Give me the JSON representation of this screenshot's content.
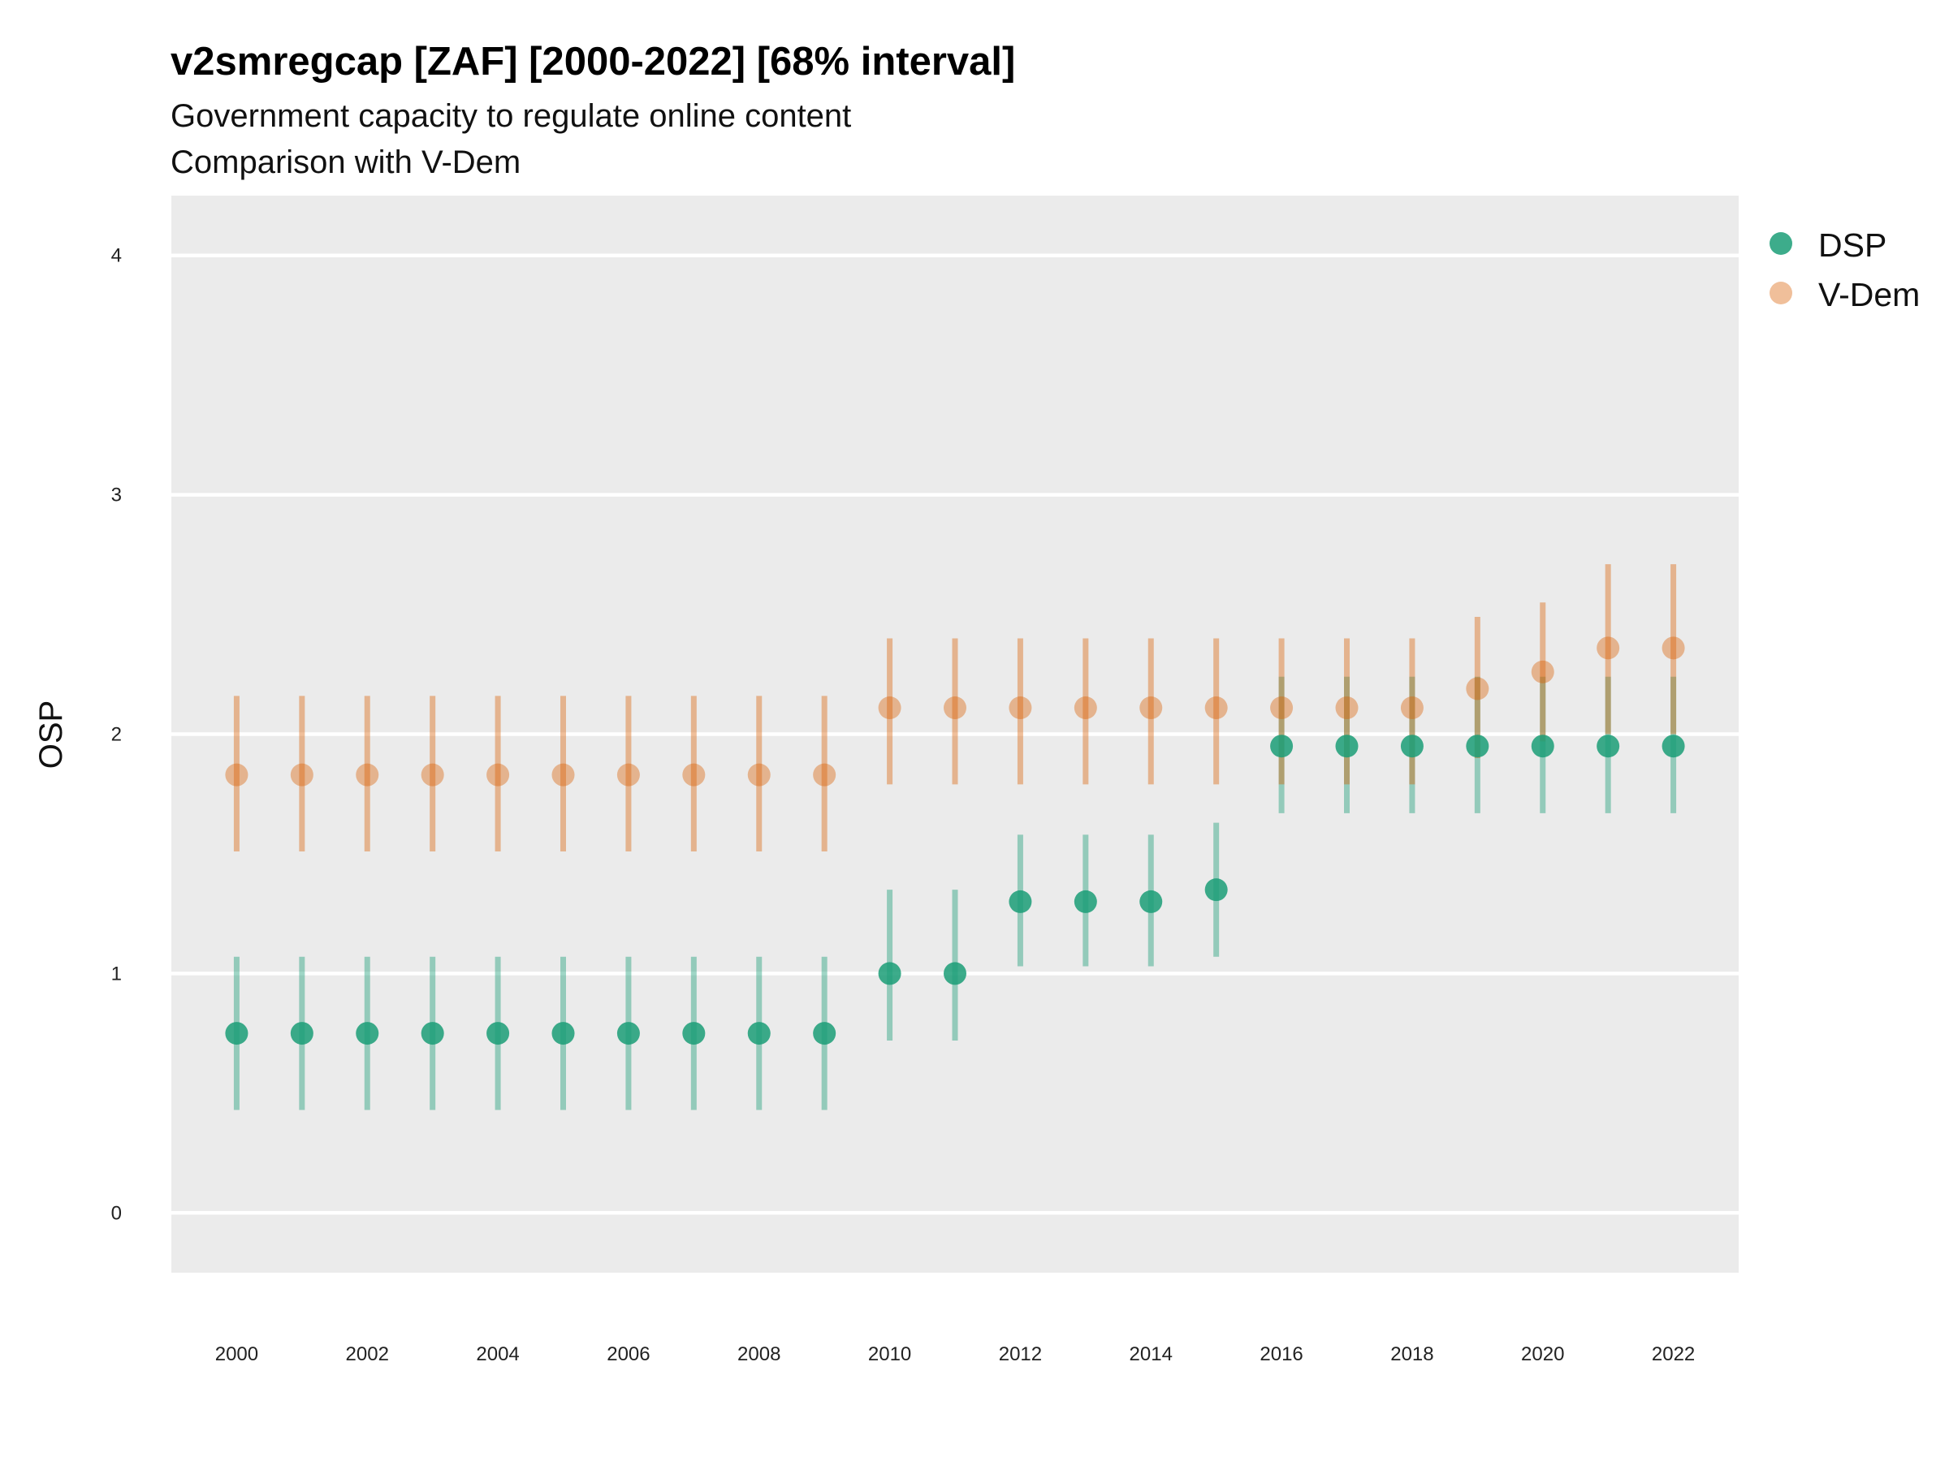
{
  "chart_data": {
    "type": "scatter",
    "title": "v2smregcap [ZAF] [2000-2022] [68% interval]",
    "subtitle_lines": [
      "Government capacity to regulate online content",
      "Comparison with V-Dem"
    ],
    "xlabel": "",
    "ylabel": "OSP",
    "xlim": [
      1999,
      2023
    ],
    "ylim": [
      -0.25,
      4.25
    ],
    "x_ticks": [
      2000,
      2002,
      2004,
      2006,
      2008,
      2010,
      2012,
      2014,
      2016,
      2018,
      2020,
      2022
    ],
    "y_ticks": [
      0,
      1,
      2,
      3,
      4
    ],
    "x": [
      2000,
      2001,
      2002,
      2003,
      2004,
      2005,
      2006,
      2007,
      2008,
      2009,
      2010,
      2011,
      2012,
      2013,
      2014,
      2015,
      2016,
      2017,
      2018,
      2019,
      2020,
      2021,
      2022
    ],
    "grid": true,
    "legend_position": "right",
    "series": [
      {
        "name": "DSP",
        "color": "#1b9e77",
        "values": [
          0.75,
          0.75,
          0.75,
          0.75,
          0.75,
          0.75,
          0.75,
          0.75,
          0.75,
          0.75,
          1.0,
          1.0,
          1.3,
          1.3,
          1.3,
          1.35,
          1.95,
          1.95,
          1.95,
          1.95,
          1.95,
          1.95,
          1.95
        ],
        "lower": [
          0.43,
          0.43,
          0.43,
          0.43,
          0.43,
          0.43,
          0.43,
          0.43,
          0.43,
          0.43,
          0.72,
          0.72,
          1.03,
          1.03,
          1.03,
          1.07,
          1.67,
          1.67,
          1.67,
          1.67,
          1.67,
          1.67,
          1.67
        ],
        "upper": [
          1.07,
          1.07,
          1.07,
          1.07,
          1.07,
          1.07,
          1.07,
          1.07,
          1.07,
          1.07,
          1.35,
          1.35,
          1.58,
          1.58,
          1.58,
          1.63,
          2.24,
          2.24,
          2.24,
          2.24,
          2.24,
          2.24,
          2.24
        ]
      },
      {
        "name": "V-Dem",
        "color": "#d95f02",
        "values": [
          1.83,
          1.83,
          1.83,
          1.83,
          1.83,
          1.83,
          1.83,
          1.83,
          1.83,
          1.83,
          2.11,
          2.11,
          2.11,
          2.11,
          2.11,
          2.11,
          2.11,
          2.11,
          2.11,
          2.19,
          2.26,
          2.36,
          2.36
        ],
        "lower": [
          1.51,
          1.51,
          1.51,
          1.51,
          1.51,
          1.51,
          1.51,
          1.51,
          1.51,
          1.51,
          1.79,
          1.79,
          1.79,
          1.79,
          1.79,
          1.79,
          1.79,
          1.79,
          1.79,
          1.9,
          1.97,
          2.0,
          2.0
        ],
        "upper": [
          2.16,
          2.16,
          2.16,
          2.16,
          2.16,
          2.16,
          2.16,
          2.16,
          2.16,
          2.16,
          2.4,
          2.4,
          2.4,
          2.4,
          2.4,
          2.4,
          2.4,
          2.4,
          2.4,
          2.49,
          2.55,
          2.71,
          2.71
        ]
      }
    ]
  }
}
